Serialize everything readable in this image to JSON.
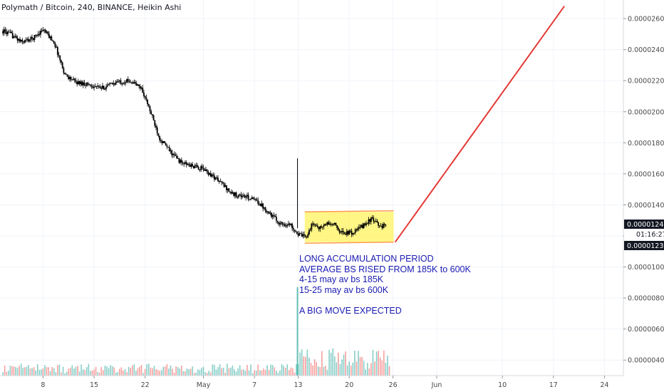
{
  "header": {
    "title": "Polymath / Bitcoin, 240, BINANCE, Heikin Ashi"
  },
  "annotation": {
    "lines": [
      "LONG ACCUMULATION PERIOD",
      "AVERAGE BS RISED FROM 185K to 600K",
      "4-15 may av bs 185K",
      "15-25 may av bs 600K",
      "",
      "A BIG MOVE EXPECTED"
    ],
    "color": "#1a1ab3"
  },
  "price_tags": {
    "last_price": "0.00001240",
    "countdown": "01:16:27",
    "lower_price": "0.00001230",
    "tag_color": "#131722"
  },
  "colors": {
    "up": "#26a69a",
    "down": "#ef5350",
    "candle": "#000000",
    "box_fill": "#fff35c",
    "box_border": "#ff9a52",
    "projection": "#e53935"
  },
  "chart_data": {
    "type": "line",
    "title": "Polymath / Bitcoin, 240, BINANCE, Heikin Ashi",
    "ylim": [
      3e-06,
      2.72e-05
    ],
    "y_ticks": [
      2.6e-05,
      2.4e-05,
      2.2e-05,
      2e-05,
      1.8e-05,
      1.6e-05,
      1.4e-05,
      1.2e-05,
      1e-05,
      8e-06,
      6e-06,
      4e-06
    ],
    "y_tick_labels": [
      "0.00002600",
      "0.00002400",
      "0.00002200",
      "0.00002000",
      "0.00001800",
      "0.00001600",
      "0.00001400",
      "0.00001200",
      "0.00001000",
      "0.00000800",
      "0.00000600",
      "0.00000400"
    ],
    "x_ticks": [
      {
        "label": "8",
        "day": 8
      },
      {
        "label": "15",
        "day": 15
      },
      {
        "label": "22",
        "day": 22
      },
      {
        "label": "May",
        "day": 30
      },
      {
        "label": "7",
        "day": 37
      },
      {
        "label": "13",
        "day": 43
      },
      {
        "label": "20",
        "day": 50
      },
      {
        "label": "26",
        "day": 56
      },
      {
        "label": "Jun",
        "day": 62
      },
      {
        "label": "10",
        "day": 71
      },
      {
        "label": "17",
        "day": 78
      },
      {
        "label": "24",
        "day": 85
      }
    ],
    "xlim_days": [
      2.1,
      87.6
    ],
    "series": [
      {
        "values": [
          [
            2.5,
            2.52e-05
          ],
          [
            3.5,
            2.5e-05
          ],
          [
            5,
            2.45e-05
          ],
          [
            6.5,
            2.47e-05
          ],
          [
            8,
            2.53e-05
          ],
          [
            9.5,
            2.45e-05
          ],
          [
            11,
            2.24e-05
          ],
          [
            12.5,
            2.19e-05
          ],
          [
            14,
            2.18e-05
          ],
          [
            16,
            2.15e-05
          ],
          [
            18,
            2.19e-05
          ],
          [
            20,
            2.2e-05
          ],
          [
            21.5,
            2.15e-05
          ],
          [
            22.5,
            2.03e-05
          ],
          [
            24,
            1.83e-05
          ],
          [
            25.5,
            1.74e-05
          ],
          [
            27,
            1.67e-05
          ],
          [
            28.5,
            1.65e-05
          ],
          [
            30,
            1.63e-05
          ],
          [
            32,
            1.56e-05
          ],
          [
            34,
            1.47e-05
          ],
          [
            36,
            1.45e-05
          ],
          [
            37.5,
            1.42e-05
          ],
          [
            39,
            1.35e-05
          ],
          [
            40.5,
            1.28e-05
          ],
          [
            42,
            1.27e-05
          ],
          [
            43,
            1.21e-05
          ],
          [
            44,
            1.19e-05
          ],
          [
            45,
            1.28e-05
          ],
          [
            46,
            1.25e-05
          ],
          [
            47,
            1.28e-05
          ],
          [
            48,
            1.27e-05
          ],
          [
            49,
            1.22e-05
          ],
          [
            50.5,
            1.22e-05
          ],
          [
            52,
            1.27e-05
          ],
          [
            53,
            1.31e-05
          ],
          [
            54,
            1.27e-05
          ],
          [
            55,
            1.26e-05
          ]
        ]
      }
    ],
    "accumulation_box": {
      "day_start": 43.9,
      "day_end": 56.1,
      "top": 1.355e-05,
      "bottom": 1.16e-05
    },
    "projection_line": [
      [
        56.3,
        1.16e-05
      ],
      [
        79.5,
        2.68e-05
      ]
    ],
    "volume": {
      "spike_day": 42.9,
      "spike_top_price": 8.7e-06,
      "bars_end_day": 55.5
    }
  }
}
